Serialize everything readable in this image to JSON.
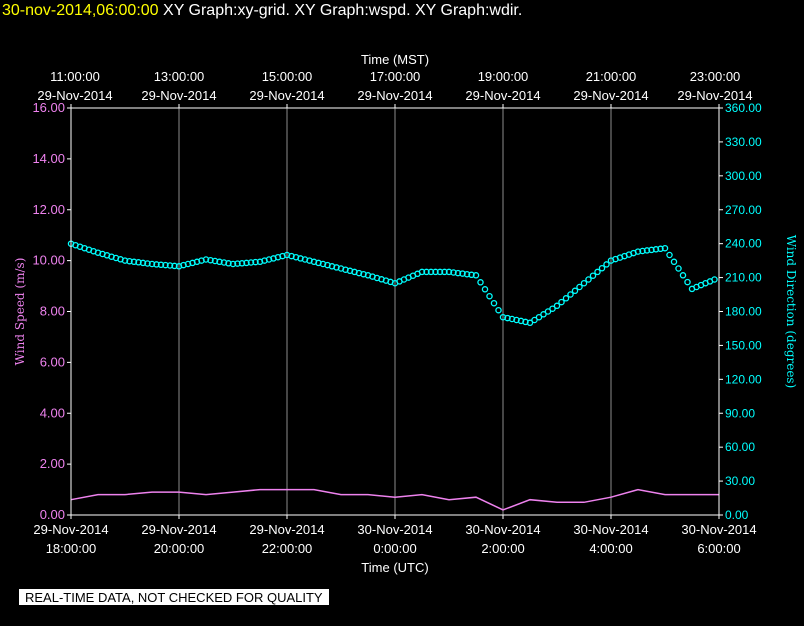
{
  "header": {
    "timestamp": "30-nov-2014,06:00:00",
    "titles": "XY Graph:xy-grid.  XY Graph:wspd.  XY Graph:wdir."
  },
  "notice": "REAL-TIME DATA, NOT CHECKED FOR QUALITY",
  "colors": {
    "background": "#000000",
    "axis": "#ffffff",
    "grid": "#ffffff",
    "wind_speed": "#ee82ee",
    "wind_direction": "#00ffff",
    "timestamp": "#ffff00"
  },
  "chart_data": {
    "type": "scatter",
    "grid": true,
    "x_top": {
      "label": "Time (MST)",
      "ticks": [
        {
          "time": "11:00:00",
          "date": "29-Nov-2014"
        },
        {
          "time": "13:00:00",
          "date": "29-Nov-2014"
        },
        {
          "time": "15:00:00",
          "date": "29-Nov-2014"
        },
        {
          "time": "17:00:00",
          "date": "29-Nov-2014"
        },
        {
          "time": "19:00:00",
          "date": "29-Nov-2014"
        },
        {
          "time": "21:00:00",
          "date": "29-Nov-2014"
        },
        {
          "time": "23:00:00",
          "date": "29-Nov-2014"
        }
      ]
    },
    "x_bottom": {
      "label": "Time (UTC)",
      "range": [
        "2014-11-29 18:00:00",
        "2014-11-30 06:00:00"
      ],
      "ticks": [
        {
          "date": "29-Nov-2014",
          "time": "18:00:00"
        },
        {
          "date": "29-Nov-2014",
          "time": "20:00:00"
        },
        {
          "date": "29-Nov-2014",
          "time": "22:00:00"
        },
        {
          "date": "30-Nov-2014",
          "time": "0:00:00"
        },
        {
          "date": "30-Nov-2014",
          "time": "2:00:00"
        },
        {
          "date": "30-Nov-2014",
          "time": "4:00:00"
        },
        {
          "date": "30-Nov-2014",
          "time": "6:00:00"
        }
      ]
    },
    "y_left": {
      "label": "Wind Speed (m/s)",
      "range": [
        0,
        16
      ],
      "ticks": [
        "0.00",
        "2.00",
        "4.00",
        "6.00",
        "8.00",
        "10.00",
        "12.00",
        "14.00",
        "16.00"
      ]
    },
    "y_right": {
      "label": "Wind Direction (degrees)",
      "range": [
        0,
        360
      ],
      "ticks": [
        "0.00",
        "30.00",
        "60.00",
        "90.00",
        "120.00",
        "150.00",
        "180.00",
        "210.00",
        "240.00",
        "270.00",
        "300.00",
        "330.00",
        "360.00"
      ]
    },
    "series": [
      {
        "name": "wspd",
        "axis": "left",
        "style": "line",
        "x_hours_utc": [
          18.0,
          18.5,
          19.0,
          19.5,
          20.0,
          20.5,
          21.0,
          21.5,
          22.0,
          22.5,
          23.0,
          23.5,
          24.0,
          24.5,
          25.0,
          25.5,
          26.0,
          26.5,
          27.0,
          27.5,
          28.0,
          28.5,
          29.0,
          29.5,
          30.0
        ],
        "values": [
          0.6,
          0.8,
          0.8,
          0.9,
          0.9,
          0.8,
          0.9,
          1.0,
          1.0,
          1.0,
          0.8,
          0.8,
          0.7,
          0.8,
          0.6,
          0.7,
          0.2,
          0.6,
          0.5,
          0.5,
          0.7,
          1.0,
          0.8,
          0.8,
          0.8
        ]
      },
      {
        "name": "wdir",
        "axis": "right",
        "style": "scatter",
        "x_hours_utc": [
          18.0,
          18.5,
          19.0,
          19.5,
          20.0,
          20.5,
          21.0,
          21.5,
          22.0,
          22.5,
          23.0,
          23.5,
          24.0,
          24.5,
          25.0,
          25.5,
          26.0,
          26.5,
          27.0,
          27.5,
          28.0,
          28.5,
          29.0,
          29.5,
          30.0
        ],
        "values": [
          240,
          232,
          225,
          222,
          220,
          226,
          222,
          224,
          230,
          224,
          218,
          212,
          205,
          215,
          215,
          212,
          175,
          170,
          185,
          205,
          225,
          233,
          236,
          200,
          210
        ]
      }
    ]
  }
}
